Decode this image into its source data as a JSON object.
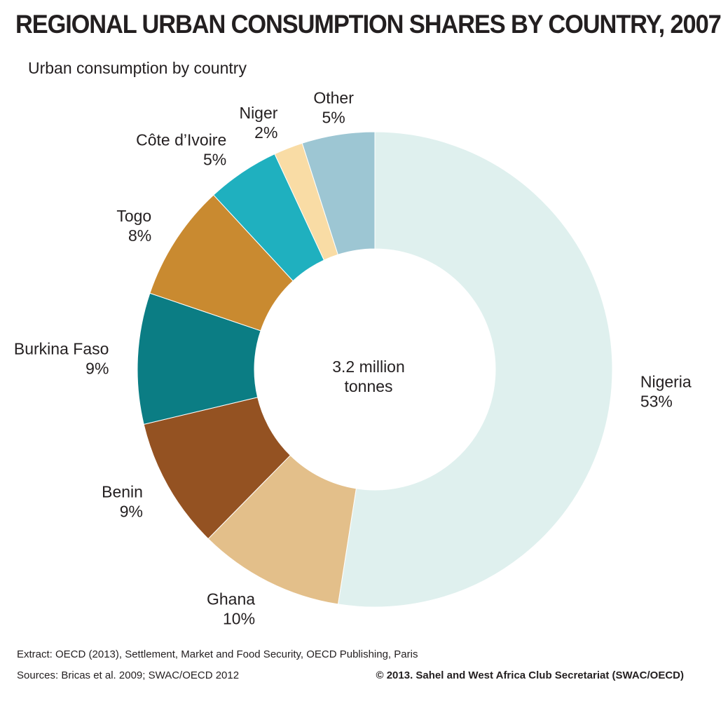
{
  "header": {
    "title": "REGIONAL URBAN CONSUMPTION SHARES BY COUNTRY, 2007",
    "subtitle": "Urban consumption by country"
  },
  "chart_data": {
    "type": "pie",
    "style": "donut",
    "title": "REGIONAL URBAN CONSUMPTION SHARES BY COUNTRY, 2007",
    "subtitle": "Urban consumption by country",
    "center_label": [
      "3.2 million",
      "tonnes"
    ],
    "unit": "%",
    "slices": [
      {
        "name": "Nigeria",
        "value": 53,
        "label": "53%",
        "color": "#dff0ee"
      },
      {
        "name": "Ghana",
        "value": 10,
        "label": "10%",
        "color": "#e3bf8a"
      },
      {
        "name": "Benin",
        "value": 9,
        "label": "9%",
        "color": "#945222"
      },
      {
        "name": "Burkina Faso",
        "value": 9,
        "label": "9%",
        "color": "#0b7d84"
      },
      {
        "name": "Togo",
        "value": 8,
        "label": "8%",
        "color": "#c98a30"
      },
      {
        "name": "Côte d’Ivoire",
        "value": 5,
        "label": "5%",
        "color": "#1fb0bf"
      },
      {
        "name": "Niger",
        "value": 2,
        "label": "2%",
        "color": "#f9dca5"
      },
      {
        "name": "Other",
        "value": 5,
        "label": "5%",
        "color": "#9dc6d3"
      }
    ],
    "start": "12 o'clock",
    "direction": "clockwise"
  },
  "footer": {
    "extract": "Extract: OECD (2013), Settlement, Market and Food Security, OECD Publishing, Paris",
    "sources": "Sources: Bricas et al. 2009; SWAC/OECD 2012",
    "copyright": "© 2013. Sahel and West Africa Club Secretariat (SWAC/OECD)"
  }
}
